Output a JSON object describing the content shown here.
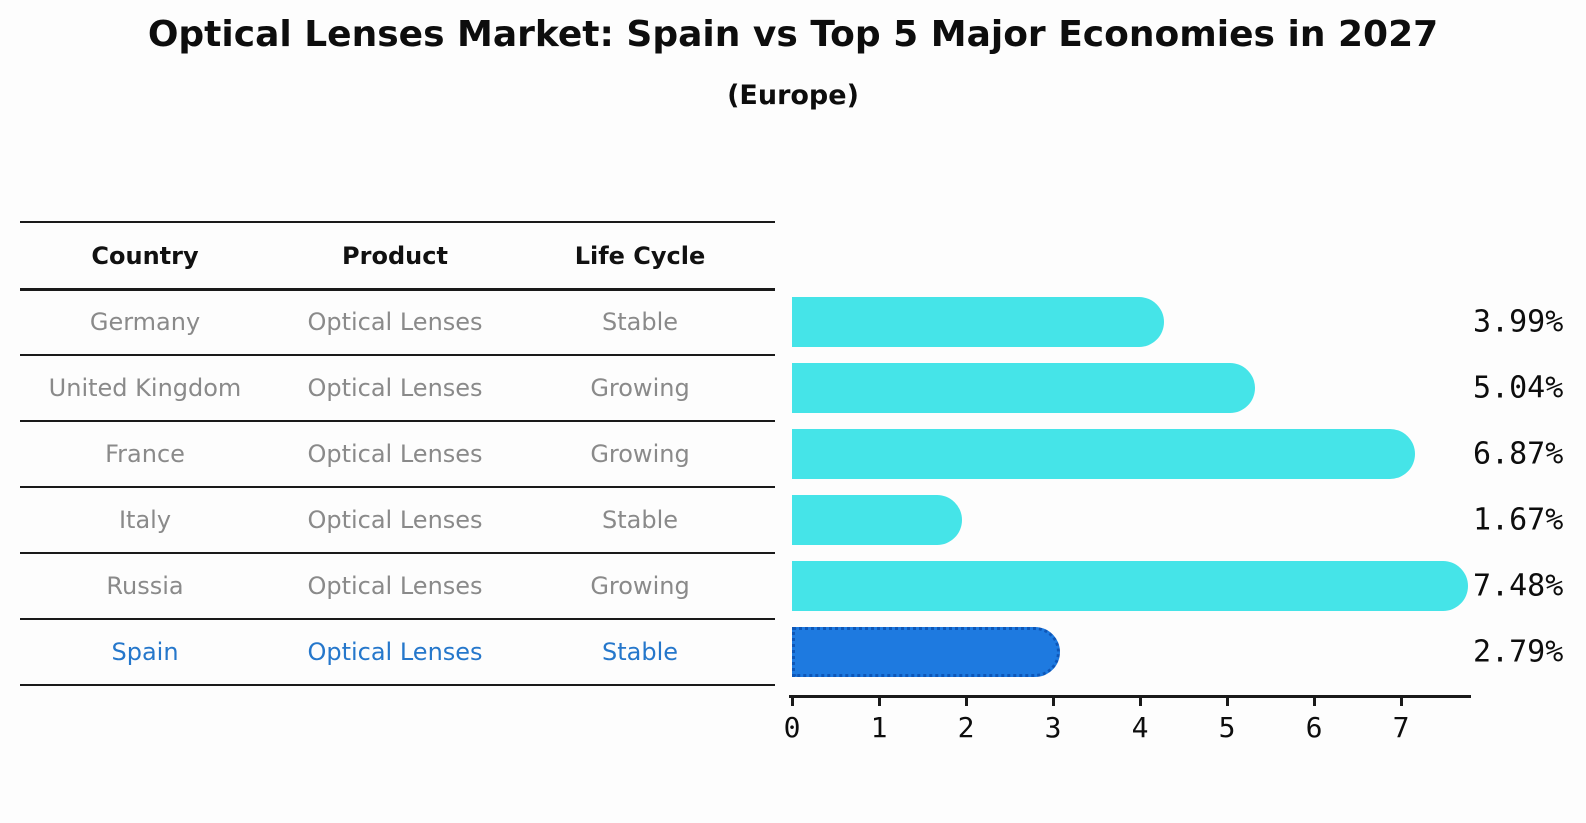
{
  "title": "Optical Lenses Market: Spain vs Top 5 Major Economies in 2027",
  "subtitle": "(Europe)",
  "table": {
    "columns": [
      "Country",
      "Product",
      "Life Cycle"
    ],
    "rows": [
      {
        "country": "Germany",
        "product": "Optical Lenses",
        "life_cycle": "Stable",
        "highlight": false
      },
      {
        "country": "United Kingdom",
        "product": "Optical Lenses",
        "life_cycle": "Growing",
        "highlight": false
      },
      {
        "country": "France",
        "product": "Optical Lenses",
        "life_cycle": "Growing",
        "highlight": false
      },
      {
        "country": "Italy",
        "product": "Optical Lenses",
        "life_cycle": "Stable",
        "highlight": false
      },
      {
        "country": "Russia",
        "product": "Optical Lenses",
        "life_cycle": "Growing",
        "highlight": false
      },
      {
        "country": "Spain",
        "product": "Optical Lenses",
        "life_cycle": "Stable",
        "highlight": true
      }
    ]
  },
  "chart_data": {
    "type": "bar",
    "orientation": "horizontal",
    "title": "Optical Lenses Market: Spain vs Top 5 Major Economies in 2027 (Europe)",
    "categories": [
      "Germany",
      "United Kingdom",
      "France",
      "Italy",
      "Russia",
      "Spain"
    ],
    "values": [
      3.99,
      5.04,
      6.87,
      1.67,
      7.48,
      2.79
    ],
    "value_labels": [
      "3.99%",
      "5.04%",
      "6.87%",
      "1.67%",
      "7.48%",
      "2.79%"
    ],
    "highlight_category": "Spain",
    "xlim": [
      0,
      7.8
    ],
    "xticks": [
      0,
      1,
      2,
      3,
      4,
      5,
      6,
      7
    ],
    "grid": false,
    "legend": "none",
    "colors": {
      "bar": "#45E4E8",
      "highlight_bar": "#1E7AE0",
      "highlight_bar_border": "#0E57B8",
      "highlight_text": "#2577cb",
      "muted_text": "#8a8a8a",
      "text": "#0d0d0d"
    }
  }
}
